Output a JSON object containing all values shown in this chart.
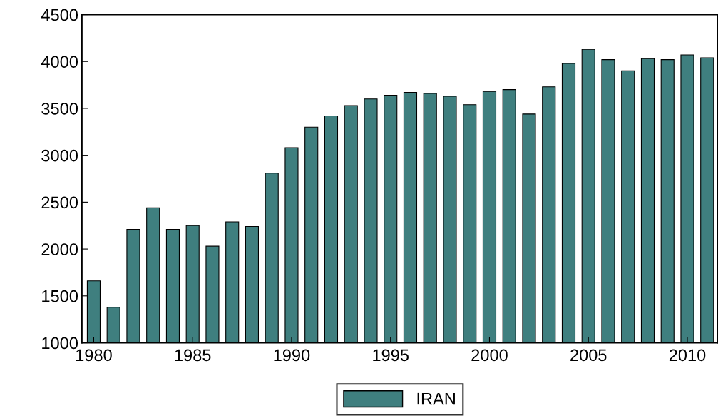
{
  "chart_data": {
    "type": "bar",
    "categories": [
      "1980",
      null,
      null,
      null,
      null,
      "1985",
      null,
      null,
      null,
      null,
      "1990",
      null,
      null,
      null,
      null,
      "1995",
      null,
      null,
      null,
      null,
      "2000",
      null,
      null,
      null,
      null,
      "2005",
      null,
      null,
      null,
      null,
      "2010",
      null
    ],
    "series": [
      {
        "name": "IRAN",
        "color": "#3f7f7f",
        "values": [
          1660,
          1380,
          2210,
          2440,
          2210,
          2250,
          2030,
          2290,
          2240,
          2810,
          3080,
          3300,
          3420,
          3530,
          3600,
          3640,
          3670,
          3660,
          3630,
          3540,
          3680,
          3700,
          3440,
          3730,
          3980,
          4130,
          4020,
          3900,
          4030,
          4020,
          4070,
          4040
        ]
      }
    ],
    "ylim": [
      1000,
      4500
    ],
    "yticks": [
      1000,
      1500,
      2000,
      2500,
      3000,
      3500,
      4000,
      4500
    ],
    "grid": false,
    "legend": "bottom"
  }
}
